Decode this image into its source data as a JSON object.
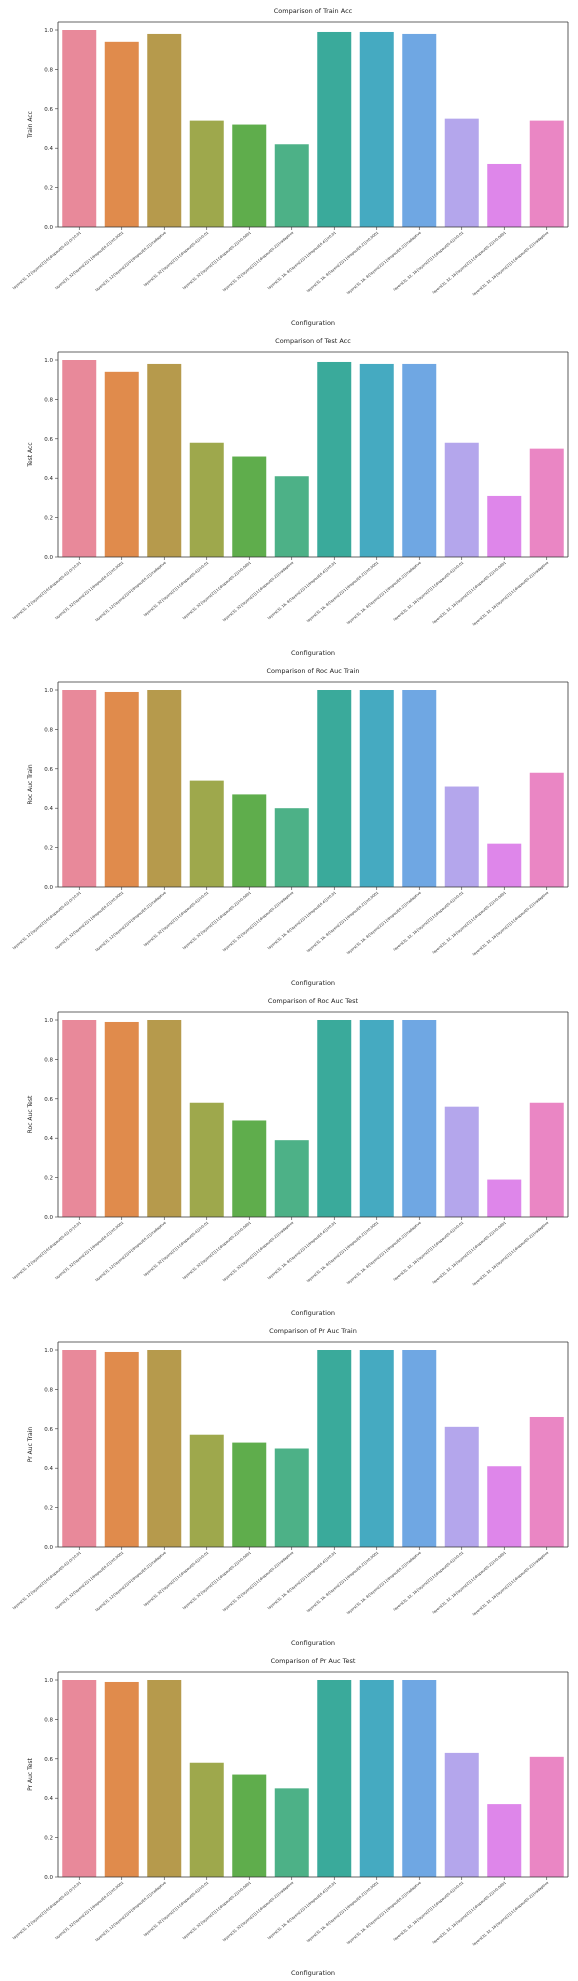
{
  "colors": [
    "#e8899a",
    "#e08b4c",
    "#b69a4c",
    "#9ea84c",
    "#5fad4c",
    "#4db187",
    "#3aaa9b",
    "#45aac1",
    "#6fa7e3",
    "#b4a6ec",
    "#de86ea",
    "#ea86c4"
  ],
  "chart_data": [
    {
      "type": "bar",
      "title": "Comparison of Train Acc",
      "xlabel": "Configuration",
      "ylabel": "Train Acc",
      "ylim": [
        0,
        1.0
      ],
      "yticks": [
        "0.0",
        "0.2",
        "0.4",
        "0.6",
        "0.8",
        "1.0"
      ],
      "categories": [
        "layers[3], 12{layers[2]}0{dropout[0.4]}{lr}0.01",
        "layers[3], 32{layers[2]}1{dropout[0.2]}lr0.0001",
        "layers[3], 12{layers[2]}0{dropout[0.2]}lradaptive",
        "layers[3], 32{layers[2]}1{dropout[0.4]}lr0.01",
        "layers[3], 32{layers[2]}1{dropout[0.2]}lr0.0001",
        "layers[3], 32{layers[2]}1{dropout[0.2]}lradaptive",
        "layers[3], 16, 8{layers[2]}1{dropout[0.4]}lr0.01",
        "layers[3], 16, 8{layers[2]}1{dropout[0.2]}lr0.0001",
        "layers[3], 16, 8{layers[2]}1{dropout[0.2]}lradaptive",
        "layers[3], 32, 16{layers[2]}1{dropout[0.4]}lr0.01",
        "layers[3], 32, 16{layers[2]}1{dropout[0.2]}lr0.0001",
        "layers[3], 32, 16{layers[2]}1{dropout[0.2]}lradaptive"
      ],
      "values": [
        1.0,
        0.94,
        0.98,
        0.54,
        0.52,
        0.42,
        0.99,
        0.99,
        0.98,
        0.55,
        0.32,
        0.54
      ]
    },
    {
      "type": "bar",
      "title": "Comparison of Test Acc",
      "xlabel": "Configuration",
      "ylabel": "Test Acc",
      "ylim": [
        0,
        1.0
      ],
      "yticks": [
        "0.0",
        "0.2",
        "0.4",
        "0.6",
        "0.8",
        "1.0"
      ],
      "categories": [
        "layers[3], 12{layers[2]}0{dropout[0.4]}{lr}0.01",
        "layers[3], 32{layers[2]}1{dropout[0.2]}lr0.0001",
        "layers[3], 12{layers[2]}0{dropout[0.2]}lradaptive",
        "layers[3], 32{layers[2]}1{dropout[0.4]}lr0.01",
        "layers[3], 32{layers[2]}1{dropout[0.2]}lr0.0001",
        "layers[3], 32{layers[2]}1{dropout[0.2]}lradaptive",
        "layers[3], 16, 8{layers[2]}1{dropout[0.4]}lr0.01",
        "layers[3], 16, 8{layers[2]}1{dropout[0.2]}lr0.0001",
        "layers[3], 16, 8{layers[2]}1{dropout[0.2]}lradaptive",
        "layers[3], 32, 16{layers[2]}1{dropout[0.4]}lr0.01",
        "layers[3], 32, 16{layers[2]}1{dropout[0.2]}lr0.0001",
        "layers[3], 32, 16{layers[2]}1{dropout[0.2]}lradaptive"
      ],
      "values": [
        1.0,
        0.94,
        0.98,
        0.58,
        0.51,
        0.41,
        0.99,
        0.98,
        0.98,
        0.58,
        0.31,
        0.55
      ]
    },
    {
      "type": "bar",
      "title": "Comparison of Roc Auc Train",
      "xlabel": "Configuration",
      "ylabel": "Roc Auc Train",
      "ylim": [
        0,
        1.0
      ],
      "yticks": [
        "0.0",
        "0.2",
        "0.4",
        "0.6",
        "0.8",
        "1.0"
      ],
      "categories": [
        "layers[3], 12{layers[2]}0{dropout[0.4]}{lr}0.01",
        "layers[3], 32{layers[2]}1{dropout[0.2]}lr0.0001",
        "layers[3], 12{layers[2]}0{dropout[0.2]}lradaptive",
        "layers[3], 32{layers[2]}1{dropout[0.4]}lr0.01",
        "layers[3], 32{layers[2]}1{dropout[0.2]}lr0.0001",
        "layers[3], 32{layers[2]}1{dropout[0.2]}lradaptive",
        "layers[3], 16, 8{layers[2]}1{dropout[0.4]}lr0.01",
        "layers[3], 16, 8{layers[2]}1{dropout[0.2]}lr0.0001",
        "layers[3], 16, 8{layers[2]}1{dropout[0.2]}lradaptive",
        "layers[3], 32, 16{layers[2]}1{dropout[0.4]}lr0.01",
        "layers[3], 32, 16{layers[2]}1{dropout[0.2]}lr0.0001",
        "layers[3], 32, 16{layers[2]}1{dropout[0.2]}lradaptive"
      ],
      "values": [
        1.0,
        0.99,
        1.0,
        0.54,
        0.47,
        0.4,
        1.0,
        1.0,
        1.0,
        0.51,
        0.22,
        0.58
      ]
    },
    {
      "type": "bar",
      "title": "Comparison of Roc Auc Test",
      "xlabel": "Configuration",
      "ylabel": "Roc Auc Test",
      "ylim": [
        0,
        1.0
      ],
      "yticks": [
        "0.0",
        "0.2",
        "0.4",
        "0.6",
        "0.8",
        "1.0"
      ],
      "categories": [
        "layers[3], 12{layers[2]}0{dropout[0.4]}{lr}0.01",
        "layers[3], 32{layers[2]}1{dropout[0.2]}lr0.0001",
        "layers[3], 12{layers[2]}0{dropout[0.2]}lradaptive",
        "layers[3], 32{layers[2]}1{dropout[0.4]}lr0.01",
        "layers[3], 32{layers[2]}1{dropout[0.2]}lr0.0001",
        "layers[3], 32{layers[2]}1{dropout[0.2]}lradaptive",
        "layers[3], 16, 8{layers[2]}1{dropout[0.4]}lr0.01",
        "layers[3], 16, 8{layers[2]}1{dropout[0.2]}lr0.0001",
        "layers[3], 16, 8{layers[2]}1{dropout[0.2]}lradaptive",
        "layers[3], 32, 16{layers[2]}1{dropout[0.4]}lr0.01",
        "layers[3], 32, 16{layers[2]}1{dropout[0.2]}lr0.0001",
        "layers[3], 32, 16{layers[2]}1{dropout[0.2]}lradaptive"
      ],
      "values": [
        1.0,
        0.99,
        1.0,
        0.58,
        0.49,
        0.39,
        1.0,
        1.0,
        1.0,
        0.56,
        0.19,
        0.58
      ]
    },
    {
      "type": "bar",
      "title": "Comparison of Pr Auc Train",
      "xlabel": "Configuration",
      "ylabel": "Pr Auc Train",
      "ylim": [
        0,
        1.0
      ],
      "yticks": [
        "0.0",
        "0.2",
        "0.4",
        "0.6",
        "0.8",
        "1.0"
      ],
      "categories": [
        "layers[3], 12{layers[2]}0{dropout[0.4]}{lr}0.01",
        "layers[3], 32{layers[2]}1{dropout[0.2]}lr0.0001",
        "layers[3], 12{layers[2]}0{dropout[0.2]}lradaptive",
        "layers[3], 32{layers[2]}1{dropout[0.4]}lr0.01",
        "layers[3], 32{layers[2]}1{dropout[0.2]}lr0.0001",
        "layers[3], 32{layers[2]}1{dropout[0.2]}lradaptive",
        "layers[3], 16, 8{layers[2]}1{dropout[0.4]}lr0.01",
        "layers[3], 16, 8{layers[2]}1{dropout[0.2]}lr0.0001",
        "layers[3], 16, 8{layers[2]}1{dropout[0.2]}lradaptive",
        "layers[3], 32, 16{layers[2]}1{dropout[0.4]}lr0.01",
        "layers[3], 32, 16{layers[2]}1{dropout[0.2]}lr0.0001",
        "layers[3], 32, 16{layers[2]}1{dropout[0.2]}lradaptive"
      ],
      "values": [
        1.0,
        0.99,
        1.0,
        0.57,
        0.53,
        0.5,
        1.0,
        1.0,
        1.0,
        0.61,
        0.41,
        0.66
      ]
    },
    {
      "type": "bar",
      "title": "Comparison of Pr Auc Test",
      "xlabel": "Configuration",
      "ylabel": "Pr Auc Test",
      "ylim": [
        0,
        1.0
      ],
      "yticks": [
        "0.0",
        "0.2",
        "0.4",
        "0.6",
        "0.8",
        "1.0"
      ],
      "categories": [
        "layers[3], 12{layers[2]}0{dropout[0.4]}{lr}0.01",
        "layers[3], 32{layers[2]}1{dropout[0.2]}lr0.0001",
        "layers[3], 12{layers[2]}0{dropout[0.2]}lradaptive",
        "layers[3], 32{layers[2]}1{dropout[0.4]}lr0.01",
        "layers[3], 32{layers[2]}1{dropout[0.2]}lr0.0001",
        "layers[3], 32{layers[2]}1{dropout[0.2]}lradaptive",
        "layers[3], 16, 8{layers[2]}1{dropout[0.4]}lr0.01",
        "layers[3], 16, 8{layers[2]}1{dropout[0.2]}lr0.0001",
        "layers[3], 16, 8{layers[2]}1{dropout[0.2]}lradaptive",
        "layers[3], 32, 16{layers[2]}1{dropout[0.4]}lr0.01",
        "layers[3], 32, 16{layers[2]}1{dropout[0.2]}lr0.0001",
        "layers[3], 32, 16{layers[2]}1{dropout[0.2]}lradaptive"
      ],
      "values": [
        1.0,
        0.99,
        1.0,
        0.58,
        0.52,
        0.45,
        1.0,
        1.0,
        1.0,
        0.63,
        0.37,
        0.61
      ]
    }
  ]
}
